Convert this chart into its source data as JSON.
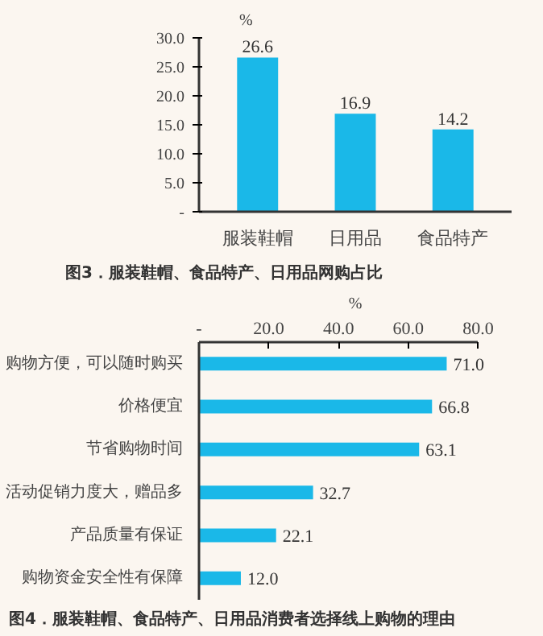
{
  "chart_data": [
    {
      "type": "bar",
      "title": "图3．服装鞋帽、食品特产、日用品网购占比",
      "ylabel": "%",
      "categories": [
        "服装鞋帽",
        "日用品",
        "食品特产"
      ],
      "values": [
        26.6,
        16.9,
        14.2
      ],
      "color": "#1ab8e8",
      "ylim": [
        0,
        30
      ],
      "yticks": [
        {
          "value": 0,
          "label": "-"
        },
        {
          "value": 5,
          "label": "5.0"
        },
        {
          "value": 10,
          "label": "10.0"
        },
        {
          "value": 15,
          "label": "15.0"
        },
        {
          "value": 20,
          "label": "20.0"
        },
        {
          "value": 25,
          "label": "25.0"
        },
        {
          "value": 30,
          "label": "30.0"
        }
      ],
      "value_labels": [
        "26.6",
        "16.9",
        "14.2"
      ],
      "grid": false
    },
    {
      "type": "bar",
      "orientation": "horizontal",
      "title": "图4．服装鞋帽、食品特产、日用品消费者选择线上购物的理由",
      "xlabel": "%",
      "categories": [
        "购物方便，可以随时购买",
        "价格便宜",
        "节省购物时间",
        "活动促销力度大，赠品多",
        "产品质量有保证",
        "购物资金安全性有保障"
      ],
      "values": [
        71.0,
        66.8,
        63.1,
        32.7,
        22.1,
        12.0
      ],
      "color": "#1ab8e8",
      "xlim": [
        0,
        80
      ],
      "xticks": [
        {
          "value": 0,
          "label": "-"
        },
        {
          "value": 20,
          "label": "20.0"
        },
        {
          "value": 40,
          "label": "40.0"
        },
        {
          "value": 60,
          "label": "60.0"
        },
        {
          "value": 80,
          "label": "80.0"
        }
      ],
      "value_labels": [
        "71.0",
        "66.8",
        "63.1",
        "32.7",
        "22.1",
        "12.0"
      ],
      "grid": false
    }
  ]
}
